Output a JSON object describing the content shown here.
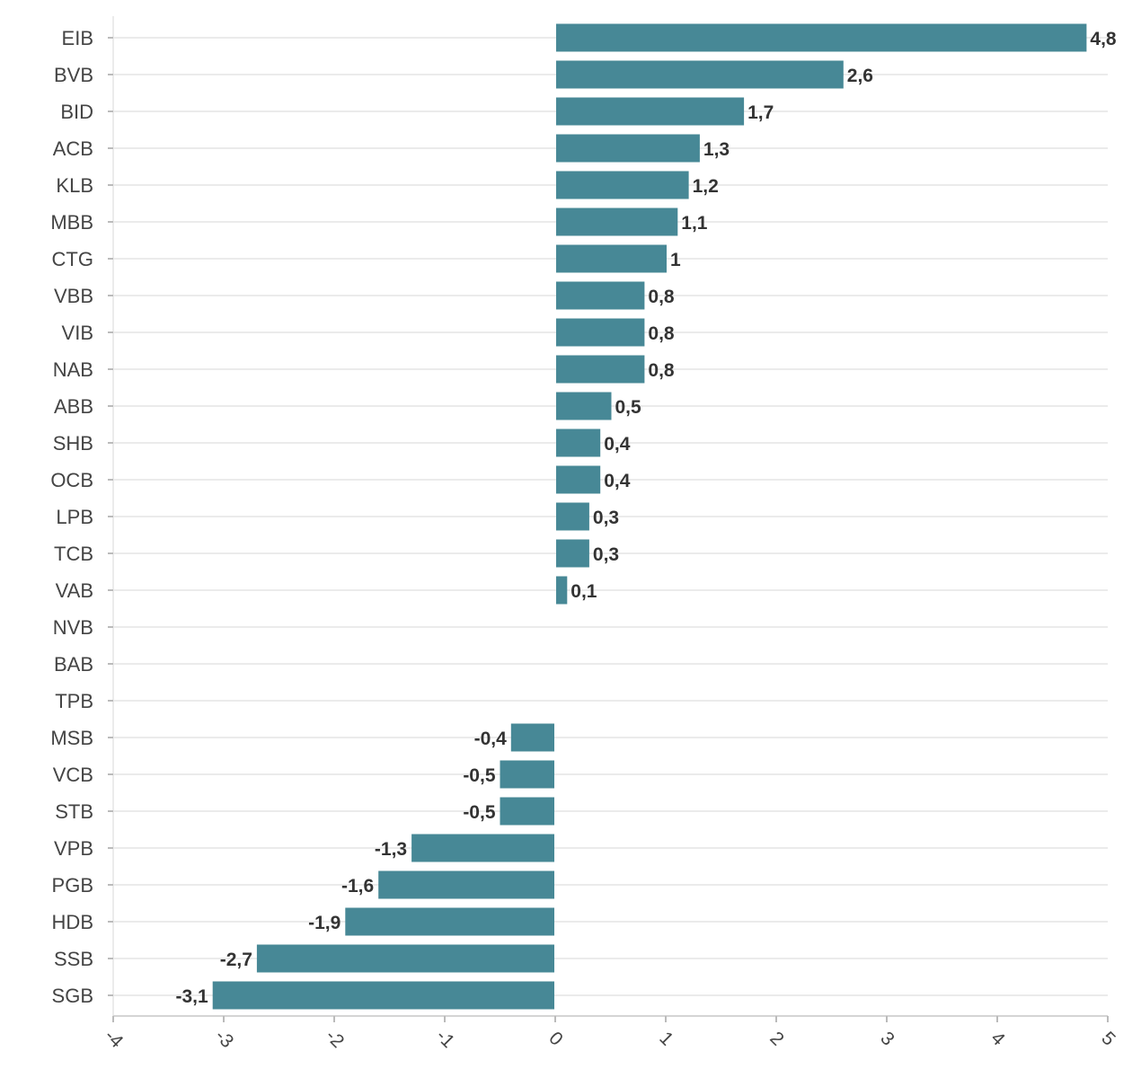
{
  "chart_data": {
    "type": "bar",
    "orientation": "horizontal",
    "categories": [
      "EIB",
      "BVB",
      "BID",
      "ACB",
      "KLB",
      "MBB",
      "CTG",
      "VBB",
      "VIB",
      "NAB",
      "ABB",
      "SHB",
      "OCB",
      "LPB",
      "TCB",
      "VAB",
      "NVB",
      "BAB",
      "TPB",
      "MSB",
      "VCB",
      "STB",
      "VPB",
      "PGB",
      "HDB",
      "SSB",
      "SGB"
    ],
    "values": [
      4.8,
      2.6,
      1.7,
      1.3,
      1.2,
      1.1,
      1,
      0.8,
      0.8,
      0.8,
      0.5,
      0.4,
      0.4,
      0.3,
      0.3,
      0.1,
      null,
      null,
      null,
      -0.4,
      -0.5,
      -0.5,
      -1.3,
      -1.6,
      -1.9,
      -2.7,
      -3.1
    ],
    "value_labels": [
      "4,8",
      "2,6",
      "1,7",
      "1,3",
      "1,2",
      "1,1",
      "1",
      "0,8",
      "0,8",
      "0,8",
      "0,5",
      "0,4",
      "0,4",
      "0,3",
      "0,3",
      "0,1",
      "",
      "",
      "",
      "-0,4",
      "-0,5",
      "-0,5",
      "-1,3",
      "-1,6",
      "-1,9",
      "-2,7",
      "-3,1"
    ],
    "x_ticks": [
      -4,
      -3,
      -2,
      -1,
      0,
      1,
      2,
      3,
      4,
      5
    ],
    "x_tick_labels": [
      "-4",
      "-3",
      "-2",
      "-1",
      "0",
      "1",
      "2",
      "3",
      "4",
      "5"
    ],
    "xlim": [
      -4,
      5
    ],
    "xlabel": "",
    "ylabel": "",
    "title": "",
    "grid": true,
    "bar_color": "#478896"
  }
}
